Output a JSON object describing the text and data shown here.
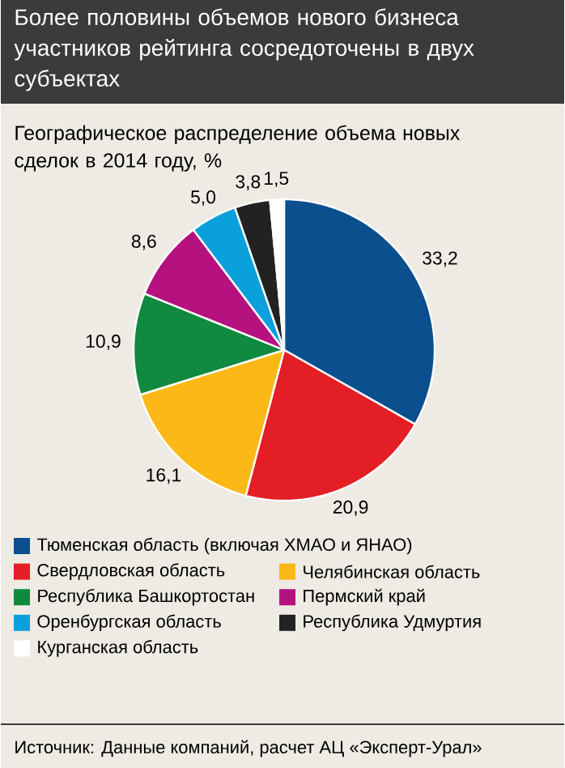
{
  "chart_data": {
    "type": "pie",
    "title": "Более половины объемов нового бизнеса участников рейтинга сосредоточены в двух субъектах",
    "subtitle": "Географическое распределение объема новых сделок в 2014 году, %",
    "categories": [
      "Тюменская область (включая ХМАО и ЯНАО)",
      "Свердловская область",
      "Челябинская область",
      "Республика Башкортостан",
      "Пермский край",
      "Оренбургская область",
      "Республика Удмуртия",
      "Курганская область"
    ],
    "values": [
      33.2,
      20.9,
      16.1,
      10.9,
      8.6,
      5.0,
      3.8,
      1.5
    ],
    "value_labels": [
      "33,2",
      "20,9",
      "16,1",
      "10,9",
      "8,6",
      "5,0",
      "3,8",
      "1,5"
    ],
    "colors": [
      "#0b4f8e",
      "#e31e24",
      "#fbb817",
      "#0f8a3e",
      "#b5117f",
      "#0aa0dc",
      "#222222",
      "#ffffff"
    ],
    "legend": "bottom",
    "annotations": [
      "Источник: Данные компаний, расчет АЦ «Эксперт-Урал»"
    ]
  }
}
